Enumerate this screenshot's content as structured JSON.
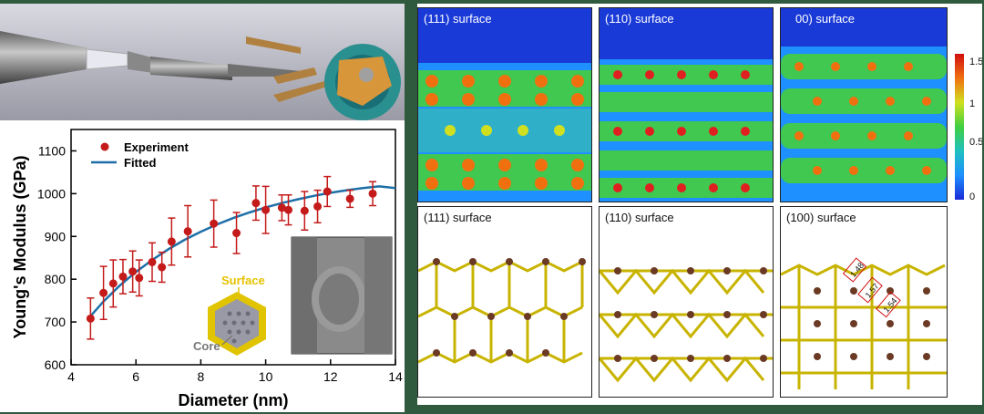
{
  "chart_data": {
    "type": "scatter",
    "xlabel": "Diameter (nm)",
    "ylabel": "Young's Modulus (GPa)",
    "xlim": [
      4,
      14
    ],
    "ylim": [
      600,
      1150
    ],
    "x_ticks": [
      4,
      6,
      8,
      10,
      12,
      14
    ],
    "y_ticks": [
      600,
      700,
      800,
      900,
      1000,
      1100
    ],
    "legend": [
      "Experiment",
      "Fitted"
    ],
    "series": [
      {
        "name": "Experiment",
        "points": [
          {
            "x": 4.6,
            "y": 708,
            "err": 48
          },
          {
            "x": 5.0,
            "y": 768,
            "err": 62
          },
          {
            "x": 5.3,
            "y": 790,
            "err": 55
          },
          {
            "x": 5.6,
            "y": 806,
            "err": 40
          },
          {
            "x": 5.9,
            "y": 818,
            "err": 48
          },
          {
            "x": 6.1,
            "y": 803,
            "err": 42
          },
          {
            "x": 6.5,
            "y": 840,
            "err": 45
          },
          {
            "x": 6.8,
            "y": 828,
            "err": 35
          },
          {
            "x": 7.1,
            "y": 888,
            "err": 55
          },
          {
            "x": 7.6,
            "y": 912,
            "err": 60
          },
          {
            "x": 8.4,
            "y": 930,
            "err": 55
          },
          {
            "x": 9.1,
            "y": 908,
            "err": 48
          },
          {
            "x": 9.7,
            "y": 978,
            "err": 40
          },
          {
            "x": 10.0,
            "y": 962,
            "err": 55
          },
          {
            "x": 10.5,
            "y": 967,
            "err": 30
          },
          {
            "x": 10.7,
            "y": 962,
            "err": 35
          },
          {
            "x": 11.2,
            "y": 960,
            "err": 45
          },
          {
            "x": 11.6,
            "y": 970,
            "err": 38
          },
          {
            "x": 11.9,
            "y": 1005,
            "err": 35
          },
          {
            "x": 12.6,
            "y": 988,
            "err": 20
          },
          {
            "x": 13.3,
            "y": 1000,
            "err": 28
          }
        ]
      },
      {
        "name": "Fitted",
        "x": [
          4.5,
          5,
          5.5,
          6,
          6.5,
          7,
          7.5,
          8,
          8.5,
          9,
          9.5,
          10,
          10.5,
          11,
          11.5,
          12,
          12.5,
          13,
          13.5,
          14
        ],
        "y": [
          705,
          748,
          785,
          817,
          845,
          870,
          892,
          911,
          928,
          943,
          956,
          968,
          978,
          987,
          995,
          1002,
          1008,
          1013,
          1017,
          1013
        ]
      }
    ],
    "inset_labels": {
      "surface": "Surface",
      "core": "Core"
    },
    "colors": {
      "points": "#c41a1a",
      "fit": "#1e6fa8",
      "inset_surface": "#e6c200"
    }
  },
  "maps": {
    "top_labels": [
      "(111) surface",
      "(110) surface",
      "00) surface"
    ],
    "bottom_labels": [
      "(111) surface",
      "(110) surface",
      "(100) surface"
    ],
    "colorbar_ticks": [
      "1.5",
      "1",
      "0.5",
      "0"
    ],
    "bond_labels": [
      "1.48",
      "1.57",
      "1.54"
    ]
  }
}
